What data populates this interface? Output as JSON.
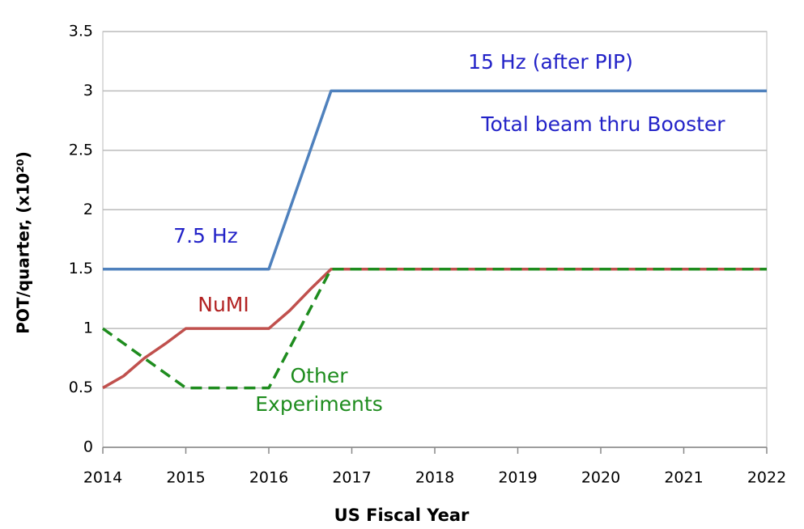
{
  "chart_data": {
    "type": "line",
    "x_label": "US Fiscal Year",
    "y_label": "POT/quarter, (x10²⁰)",
    "xlim": [
      2014,
      2022
    ],
    "xticks": [
      2014,
      2015,
      2016,
      2017,
      2018,
      2019,
      2020,
      2021,
      2022
    ],
    "ylim": [
      0,
      3.5
    ],
    "yticks": [
      0,
      0.5,
      1,
      1.5,
      2,
      2.5,
      3,
      3.5
    ],
    "grid": true,
    "series": [
      {
        "color": "#4f81bd",
        "dashed": false,
        "x": [
          2014,
          2016,
          2016.75,
          2022
        ],
        "values": [
          1.5,
          1.5,
          3,
          3
        ]
      },
      {
        "color": "#c0504d",
        "dashed": false,
        "x": [
          2014,
          2014.25,
          2014.5,
          2014.75,
          2015,
          2016,
          2016.25,
          2016.5,
          2016.75,
          2022
        ],
        "values": [
          0.5,
          0.6,
          0.75,
          0.87,
          1,
          1,
          1.15,
          1.33,
          1.5,
          1.5
        ]
      },
      {
        "color": "#1e8c1e",
        "dashed": true,
        "x": [
          2014,
          2014.5,
          2015,
          2016,
          2016.75,
          2022
        ],
        "values": [
          1,
          0.75,
          0.5,
          0.5,
          1.5,
          1.5
        ]
      }
    ],
    "annotations": [
      {
        "text": "15 Hz (after PIP)",
        "color": "#2323c8"
      },
      {
        "text": "Total beam thru Booster",
        "color": "#2323c8"
      },
      {
        "text": "7.5 Hz",
        "color": "#2323c8"
      },
      {
        "text": "NuMI",
        "color": "#b22222"
      },
      {
        "text": "Other",
        "color": "#1e8c1e"
      },
      {
        "text": "Experiments",
        "color": "#1e8c1e"
      }
    ]
  }
}
